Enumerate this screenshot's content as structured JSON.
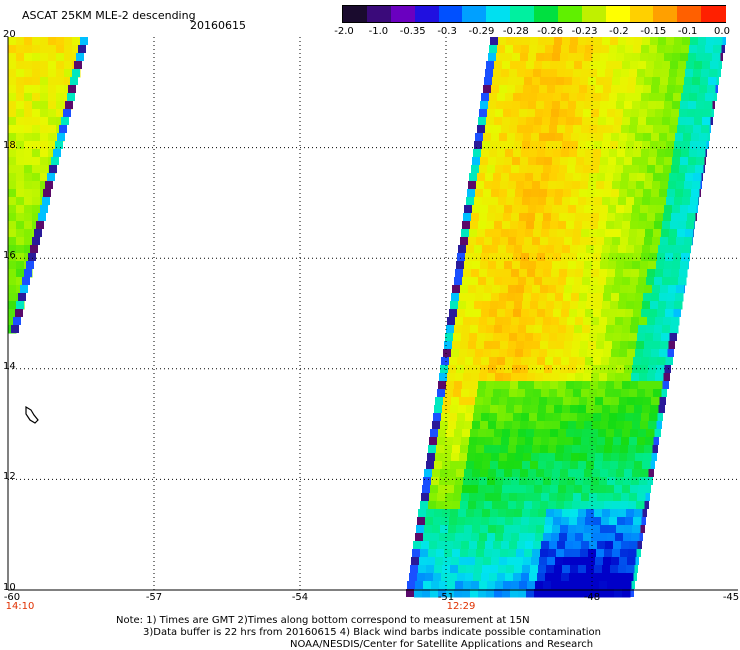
{
  "header": {
    "title": "ASCAT 25KM MLE-2 descending",
    "date": "20160615"
  },
  "colorbar": {
    "labels": [
      "-2.0",
      "-1.0",
      "-0.35",
      "-0.3",
      "-0.29",
      "-0.28",
      "-0.26",
      "-0.23",
      "-0.2",
      "-0.15",
      "-0.1",
      "0.0"
    ],
    "colors": [
      "#1a0b2e",
      "#3a0a7a",
      "#6a00c0",
      "#2010e0",
      "#0050ff",
      "#00a0ff",
      "#00e0f0",
      "#00f0a0",
      "#00e040",
      "#60f000",
      "#c0f000",
      "#ffff00",
      "#ffd000",
      "#ffa000",
      "#ff6000",
      "#ff2000"
    ]
  },
  "map": {
    "lat_labels": [
      "20",
      "18",
      "16",
      "14",
      "12",
      "10"
    ],
    "lon_labels": [
      "-60",
      "-57",
      "-54",
      "-51",
      "-48",
      "-45"
    ],
    "time_labels": [
      "14:10",
      "12:29"
    ]
  },
  "notes": {
    "line1": "Note: 1) Times are GMT 2)Times along bottom correspond to measurement at 15N",
    "line2": "3)Data buffer is 22 hrs from 20160615 4) Black wind barbs indicate possible contamination",
    "line3": "NOAA/NESDIS/Center for Satellite Applications and Research"
  }
}
